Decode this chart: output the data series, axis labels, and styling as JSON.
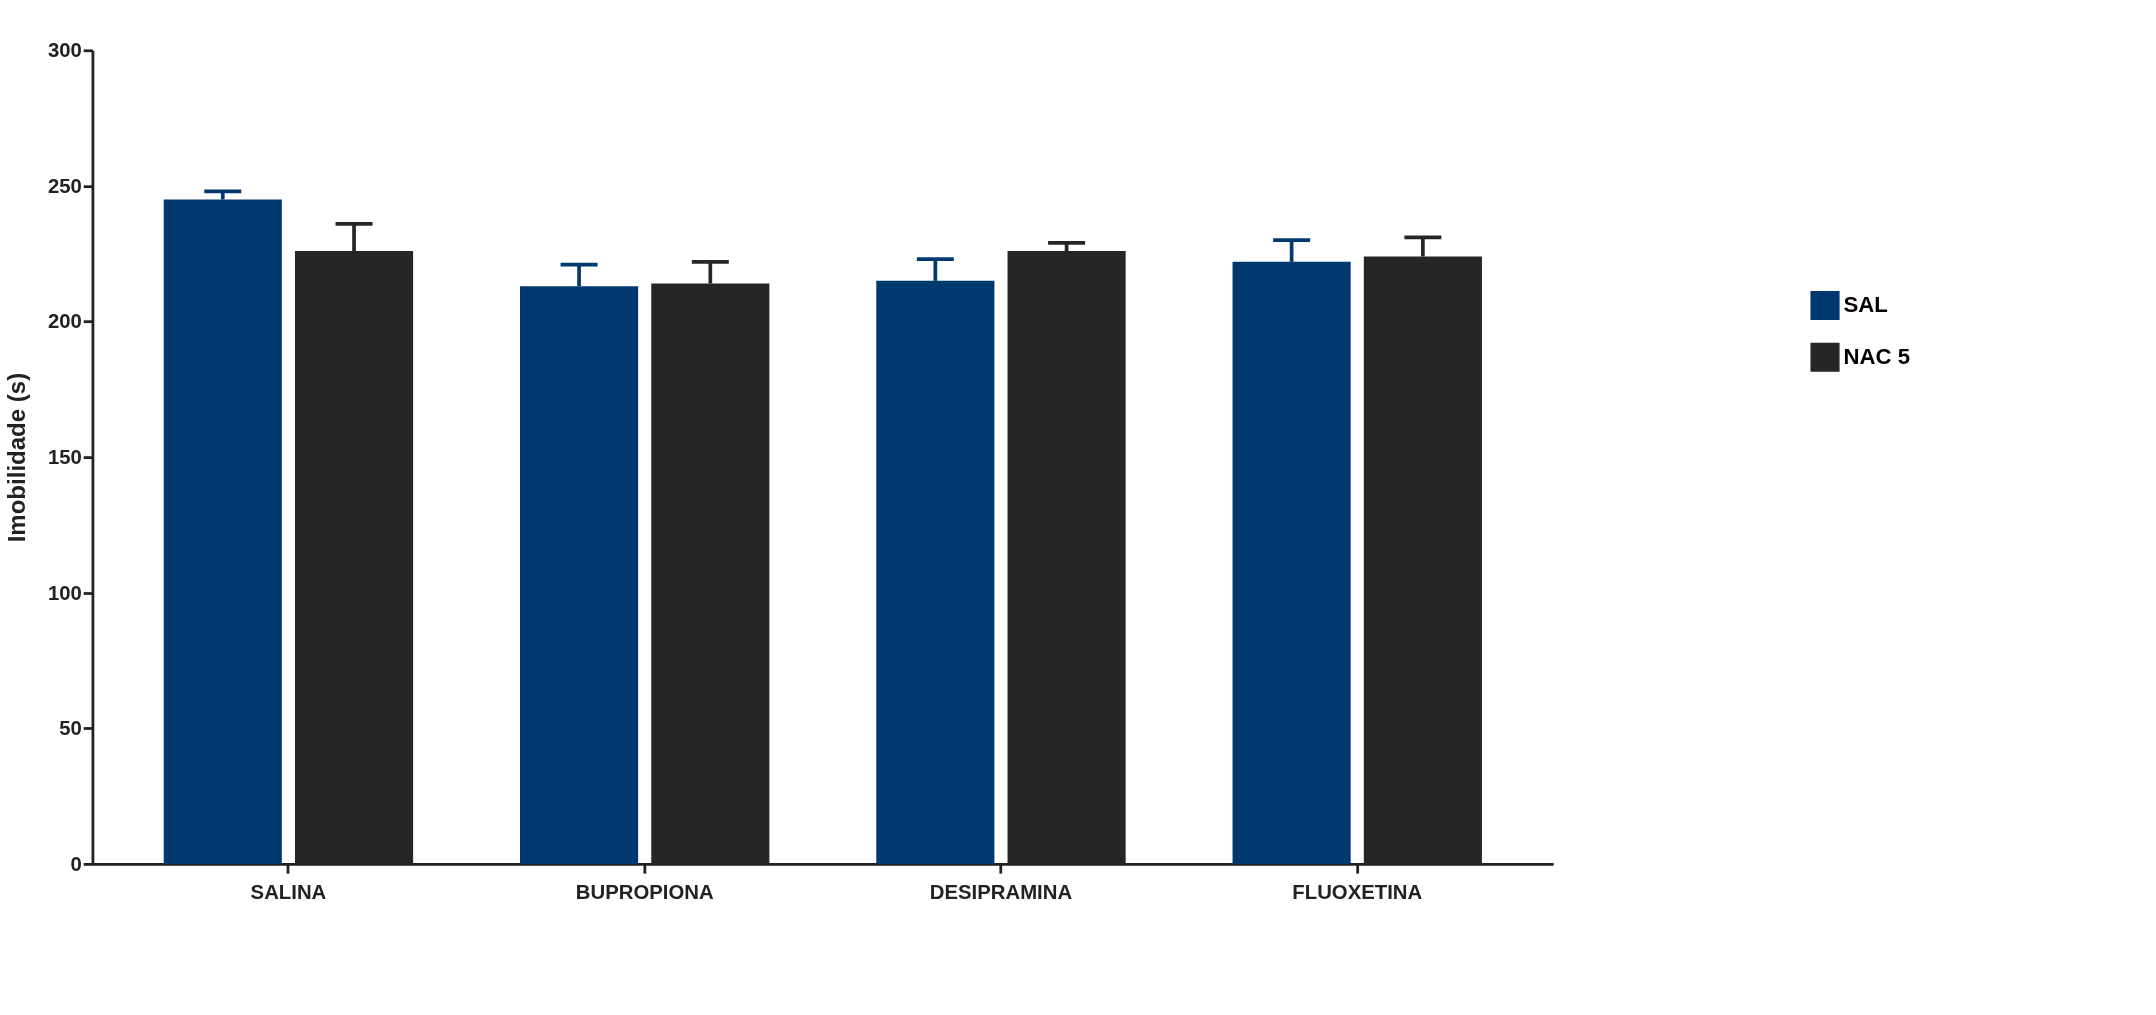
{
  "chart_data": {
    "type": "bar",
    "ylabel": "Imobilidade (s)",
    "categories": [
      "SALINA",
      "BUPROPIONA",
      "DESIPRAMINA",
      "FLUOXETINA"
    ],
    "series": [
      {
        "name": "SAL",
        "color": "#003870",
        "values": [
          245,
          213,
          215,
          222
        ],
        "errors": [
          [
            245,
            248
          ],
          [
            213,
            221
          ],
          [
            215,
            223
          ],
          [
            222,
            230
          ]
        ]
      },
      {
        "name": "NAC 5",
        "color": "#262626",
        "values": [
          226,
          214,
          226,
          224
        ],
        "errors": [
          [
            226,
            236
          ],
          [
            214,
            222
          ],
          [
            226,
            229
          ],
          [
            224,
            231
          ]
        ]
      }
    ],
    "ylim": [
      0,
      300
    ],
    "yticks": [
      0,
      50,
      100,
      150,
      200,
      250,
      300
    ],
    "grid": false,
    "legend": "right"
  }
}
